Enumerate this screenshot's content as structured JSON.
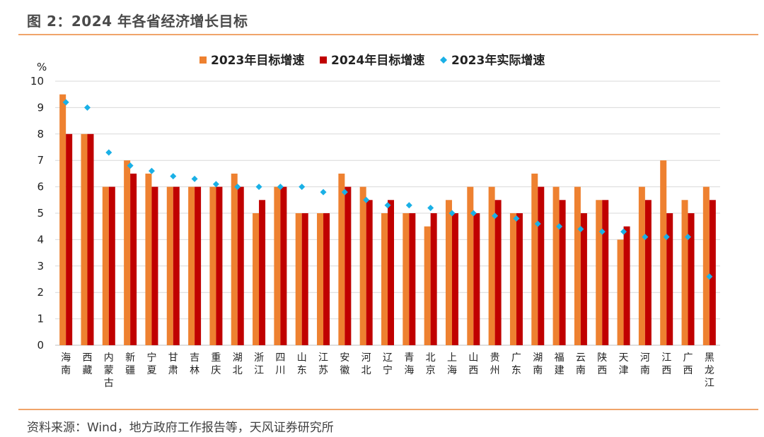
{
  "header": {
    "title": "图 2：2024 年各省经济增长目标"
  },
  "source": "资料来源：Wind，地方政府工作报告等，天风证券研究所",
  "colors": {
    "accent_line": "#f0a46a",
    "series_2023_target": "#ee8130",
    "series_2024_target": "#c00000",
    "series_2023_actual": "#1ab0e6",
    "grid": "#d9d9d9"
  },
  "chart_data": {
    "type": "bar",
    "unit_label": "%",
    "ylim": [
      0,
      10
    ],
    "yticks": [
      "0",
      "1",
      "2",
      "3",
      "4",
      "5",
      "6",
      "7",
      "8",
      "9",
      "10"
    ],
    "grid": true,
    "legend_position": "top",
    "categories": [
      "海南",
      "西藏",
      "内蒙古",
      "新疆",
      "宁夏",
      "甘肃",
      "吉林",
      "重庆",
      "湖北",
      "浙江",
      "四川",
      "山东",
      "江苏",
      "安徽",
      "河北",
      "辽宁",
      "青海",
      "北京",
      "上海",
      "山西",
      "贵州",
      "广东",
      "湖南",
      "福建",
      "云南",
      "陕西",
      "天津",
      "河南",
      "江西",
      "广西",
      "黑龙江"
    ],
    "series": [
      {
        "name": "2023年目标增速",
        "kind": "bar",
        "color": "#ee8130",
        "values": [
          9.5,
          8,
          6,
          7,
          6.5,
          6,
          6,
          6,
          6.5,
          5,
          6,
          5,
          5,
          6.5,
          6,
          5,
          5,
          4.5,
          5.5,
          6,
          6,
          5,
          6.5,
          6,
          6,
          5.5,
          4,
          6,
          7,
          5.5,
          6
        ]
      },
      {
        "name": "2024年目标增速",
        "kind": "bar",
        "color": "#c00000",
        "values": [
          8,
          8,
          6,
          6.5,
          6,
          6,
          6,
          6,
          6,
          5.5,
          6,
          5,
          5,
          6,
          5.5,
          5.5,
          5,
          5,
          5,
          5,
          5.5,
          5,
          6,
          5.5,
          5,
          5.5,
          4.5,
          5.5,
          5,
          5,
          5.5
        ]
      },
      {
        "name": "2023年实际增速",
        "kind": "marker",
        "color": "#1ab0e6",
        "values": [
          9.2,
          9,
          7.3,
          6.8,
          6.6,
          6.4,
          6.3,
          6.1,
          6,
          6,
          6,
          6,
          5.8,
          5.8,
          5.5,
          5.3,
          5.3,
          5.2,
          5,
          5,
          4.9,
          4.8,
          4.6,
          4.5,
          4.4,
          4.3,
          4.3,
          4.1,
          4.1,
          4.1,
          2.6
        ]
      }
    ]
  }
}
